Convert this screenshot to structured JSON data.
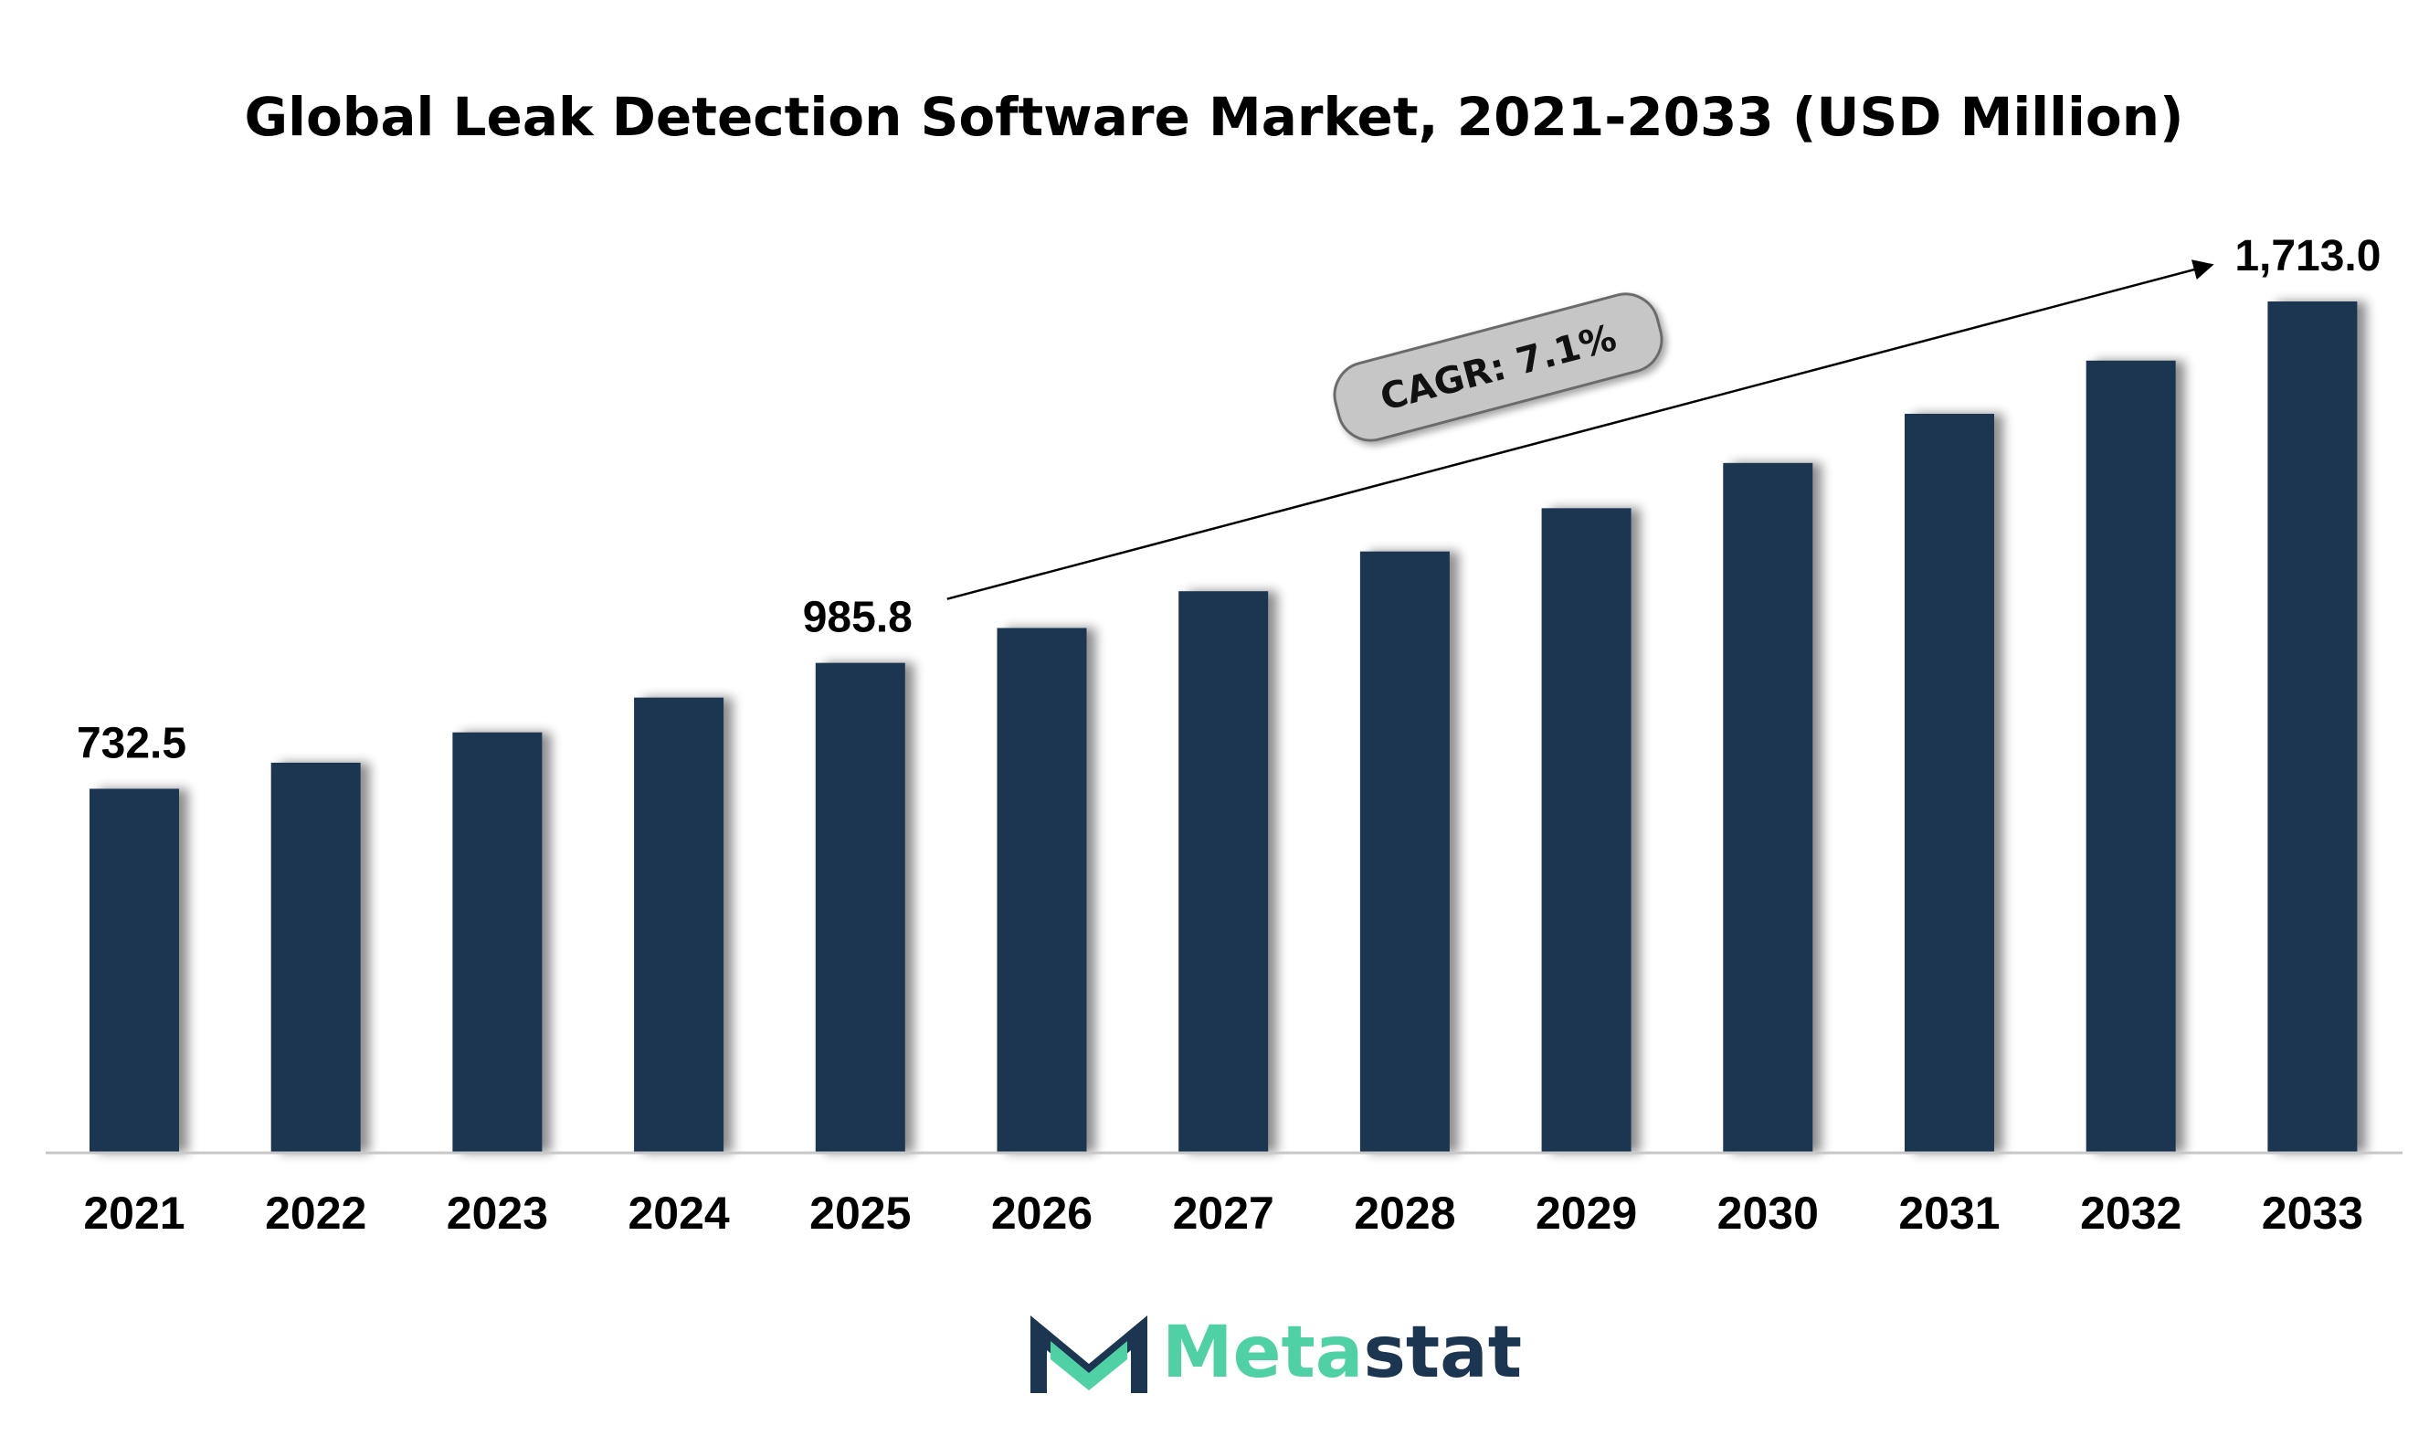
{
  "title": "Global Leak Detection Software Market, 2021-2033 (USD Million)",
  "chart_data": {
    "type": "bar",
    "title": "Global Leak Detection Software Market, 2021-2033 (USD Million)",
    "xlabel": "",
    "ylabel": "",
    "categories": [
      "2021",
      "2022",
      "2023",
      "2024",
      "2025",
      "2026",
      "2027",
      "2028",
      "2029",
      "2030",
      "2031",
      "2032",
      "2033"
    ],
    "values": [
      732.5,
      785,
      846,
      916,
      985.8,
      1056,
      1130,
      1210,
      1297,
      1388,
      1487,
      1594,
      1713.0
    ],
    "ylim": [
      0,
      1713.0
    ],
    "grid": false,
    "legend": "none",
    "data_labels": [
      {
        "category": "2021",
        "text": "732.5"
      },
      {
        "category": "2025",
        "text": "985.8"
      },
      {
        "category": "2033",
        "text": "1,713.0"
      }
    ],
    "annotation": {
      "text": "CAGR: 7.1%",
      "from_category": "2025",
      "to_category": "2033"
    },
    "colors": {
      "bar": "#1c3551",
      "axis": "#c8c8c8",
      "cagr_fill": "#c6c6c6",
      "cagr_stroke": "#6b6b6b"
    }
  },
  "logo": {
    "text_part1": "Meta",
    "text_part2": "stat",
    "color_part1": "#4fd1a5",
    "color_part2": "#1c3551",
    "icon": "metastat-m-logo-icon"
  }
}
